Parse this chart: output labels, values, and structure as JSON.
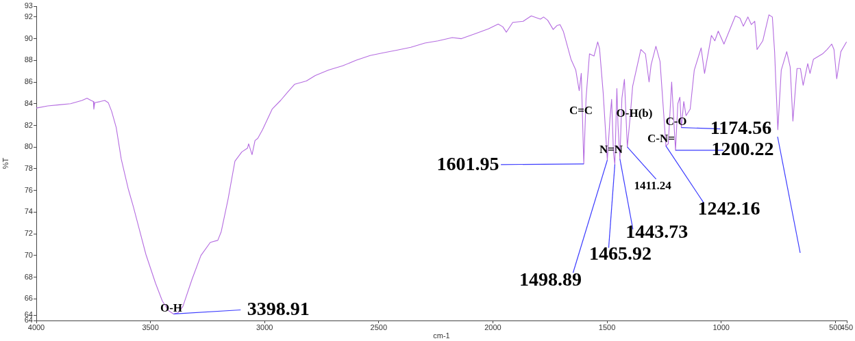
{
  "chart_data": {
    "type": "line",
    "xlabel": "cm-1",
    "ylabel": "%T",
    "xlim": [
      4000,
      450
    ],
    "xticks": [
      4000,
      3500,
      3000,
      2500,
      2000,
      1500,
      1000,
      500,
      450
    ],
    "ylim": [
      64,
      93
    ],
    "yticks": [
      64,
      {
        "value": 64.5,
        "label": "64"
      },
      66,
      68,
      70,
      72,
      74,
      76,
      78,
      80,
      82,
      84,
      86,
      88,
      90,
      92,
      93
    ],
    "series": [
      {
        "color": "#b46be0",
        "x": [
          4000,
          3950,
          3900,
          3850,
          3800,
          3778,
          3760,
          3750,
          3748,
          3744,
          3720,
          3700,
          3685,
          3670,
          3650,
          3628,
          3598,
          3575,
          3550,
          3520,
          3478,
          3448,
          3420,
          3398.91,
          3380,
          3358,
          3318,
          3279,
          3238,
          3205,
          3190,
          3160,
          3130,
          3100,
          3075,
          3070,
          3055,
          3042,
          3030,
          3009,
          2967,
          2930,
          2898,
          2868,
          2817,
          2778,
          2720,
          2658,
          2600,
          2538,
          2480,
          2418,
          2360,
          2298,
          2240,
          2178,
          2138,
          2079,
          2020,
          1977,
          1957,
          1941,
          1913,
          1868,
          1832,
          1792,
          1778,
          1760,
          1736,
          1720,
          1706,
          1691,
          1658,
          1637,
          1622,
          1613,
          1601.95,
          1592,
          1577,
          1557,
          1541,
          1533,
          1517,
          1498.89,
          1487,
          1480,
          1472,
          1465.92,
          1457,
          1452,
          1443.73,
          1435,
          1424,
          1411.24,
          1400,
          1388,
          1352,
          1332,
          1316,
          1307,
          1286,
          1268,
          1255,
          1242.16,
          1232,
          1217,
          1200.22,
          1190,
          1181,
          1174.56,
          1164,
          1154,
          1136,
          1118,
          1088,
          1073,
          1043,
          1028,
          1013,
          988,
          938,
          918,
          903,
          883,
          868,
          853,
          843,
          818,
          791,
          776,
          766,
          761,
          752,
          737,
          713,
          698,
          686,
          668,
          653,
          641,
          621,
          611,
          596,
          556,
          536,
          516,
          506,
          494,
          476,
          451
        ],
        "values": [
          83.6,
          83.8,
          83.9,
          84.0,
          84.3,
          84.5,
          84.3,
          84.2,
          83.5,
          84.1,
          84.2,
          84.3,
          84.1,
          83.3,
          81.8,
          78.9,
          76.2,
          74.5,
          72.5,
          70.1,
          67.45,
          65.8,
          64.9,
          64.6,
          64.7,
          65.3,
          67.8,
          70.0,
          71.2,
          71.4,
          72.2,
          75.2,
          78.7,
          79.55,
          79.9,
          80.3,
          79.3,
          80.6,
          80.8,
          81.6,
          83.5,
          84.3,
          85.1,
          85.8,
          86.1,
          86.6,
          87.1,
          87.5,
          88.0,
          88.45,
          88.7,
          88.95,
          89.2,
          89.6,
          89.8,
          90.1,
          90.0,
          90.45,
          90.9,
          91.35,
          91.1,
          90.6,
          91.5,
          91.6,
          92.1,
          91.8,
          92.0,
          91.7,
          90.85,
          91.2,
          91.3,
          90.65,
          88.1,
          87.1,
          85.2,
          86.8,
          78.45,
          84.5,
          88.6,
          88.4,
          89.7,
          89.1,
          85.0,
          78.8,
          82.7,
          84.4,
          79.5,
          78.4,
          85.4,
          82.0,
          78.9,
          84.5,
          86.25,
          80.0,
          82.5,
          85.6,
          89.0,
          88.6,
          86.0,
          87.6,
          89.3,
          87.9,
          84.0,
          80.1,
          80.3,
          86.0,
          79.7,
          84.0,
          84.6,
          81.8,
          84.2,
          82.9,
          83.5,
          87.1,
          89.15,
          86.8,
          90.3,
          89.8,
          90.7,
          89.5,
          92.1,
          91.9,
          91.15,
          92.0,
          91.3,
          91.6,
          89.0,
          89.8,
          92.2,
          92.0,
          88.75,
          86.1,
          81.6,
          87.1,
          88.8,
          87.4,
          82.4,
          87.25,
          87.25,
          85.7,
          87.7,
          86.8,
          88.1,
          88.6,
          89.0,
          89.5,
          89.0,
          86.3,
          88.8,
          89.7
        ]
      }
    ],
    "annotations": [
      "O-H",
      "C=C",
      "O-H(b)",
      "N=N",
      "C-N=",
      "C-O",
      {
        "text": "3398.91",
        "x": 3398.91,
        "y": 64.6
      },
      {
        "text": "1601.95",
        "x": 1601.95,
        "y": 78.45
      },
      {
        "text": "1498.89",
        "x": 1498.89,
        "y": 78.8
      },
      {
        "text": "1465.92",
        "x": 1465.92,
        "y": 78.4
      },
      {
        "text": "1443.73",
        "x": 1443.73,
        "y": 78.9
      },
      {
        "text": "1411.24",
        "x": 1411.24,
        "y": 80.0
      },
      {
        "text": "1242.16",
        "x": 1242.16,
        "y": 80.1
      },
      {
        "text": "1200.22",
        "x": 1200.22,
        "y": 79.7
      },
      {
        "text": "1174.56",
        "x": 1174.56,
        "y": 81.8
      }
    ]
  }
}
